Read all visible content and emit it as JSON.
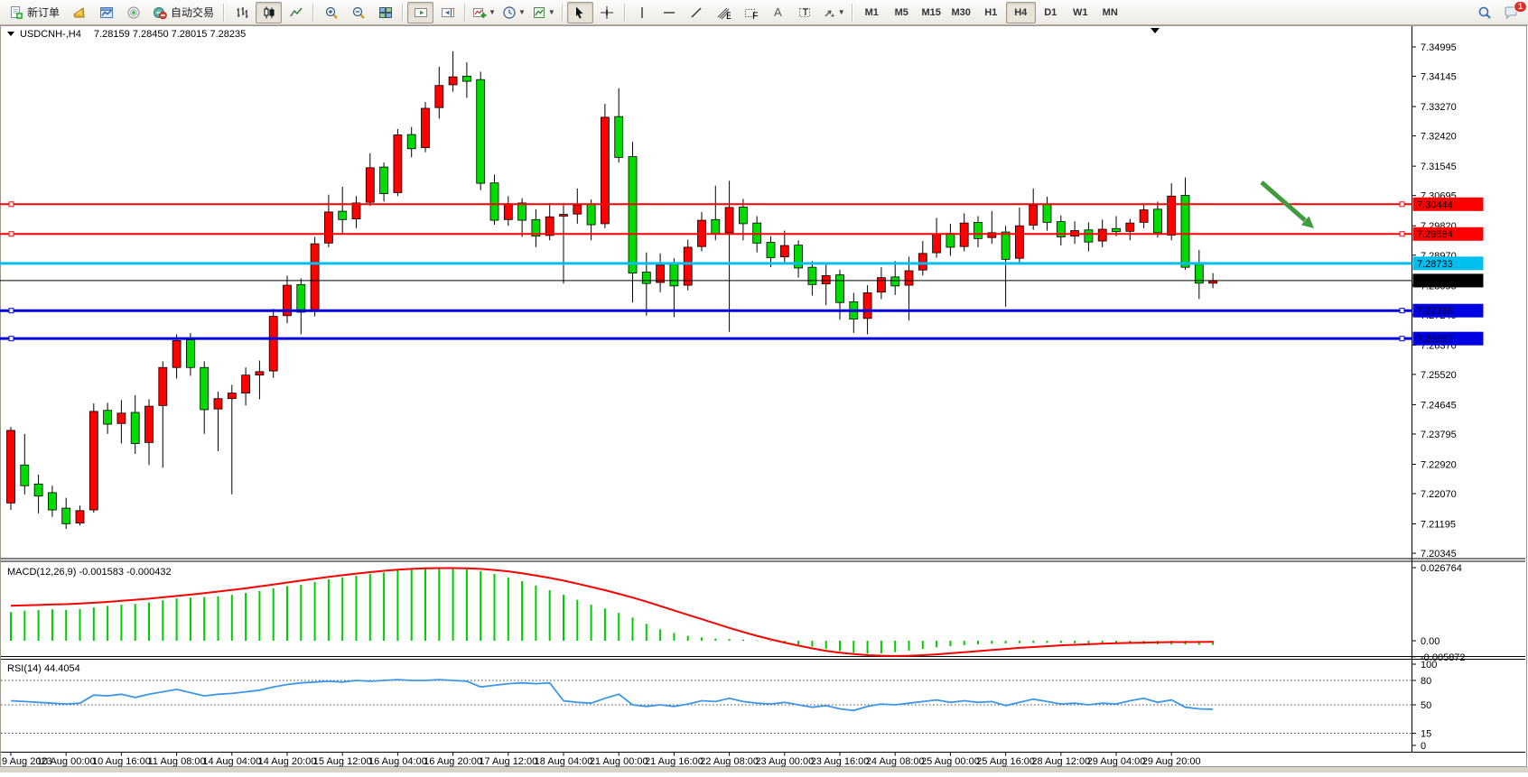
{
  "toolbar": {
    "new_order_label": "新订单",
    "autotrading_label": "自动交易",
    "text_tool": "A",
    "label_tool": "T",
    "timeframes": [
      "M1",
      "M5",
      "M15",
      "M30",
      "H1",
      "H4",
      "D1",
      "W1",
      "MN"
    ],
    "active_timeframe": "H4",
    "notification_count": "1"
  },
  "chart": {
    "title": "USDCNH-,H4",
    "ohlc_line": "7.28159 7.28450 7.28015 7.28235"
  },
  "chart_data": {
    "type": "candlestick",
    "symbol": "USDCNH-",
    "timeframe": "H4",
    "last_open": "7.28159",
    "last_high": "7.28450",
    "last_low": "7.28015",
    "last_close": "7.28235",
    "colors": {
      "bull": "#FF0000",
      "bear": "#00DC00",
      "wick": "#000000",
      "macd_hist": "#00CC00",
      "macd_signal": "#FF0000",
      "rsi": "#3E96E8",
      "arrow": "#3E9B3E"
    },
    "y_axis_ticks": [
      "7.34995",
      "7.34145",
      "7.33270",
      "7.32420",
      "7.31545",
      "7.30695",
      "7.29820",
      "7.28970",
      "7.28095",
      "7.27245",
      "7.26370",
      "7.25520",
      "7.24645",
      "7.23795",
      "7.22920",
      "7.22070",
      "7.21195",
      "7.20345"
    ],
    "x_axis_labels": [
      "9 Aug 2023",
      "10 Aug 00:00",
      "10 Aug 16:00",
      "11 Aug 08:00",
      "14 Aug 04:00",
      "14 Aug 20:00",
      "15 Aug 12:00",
      "16 Aug 04:00",
      "16 Aug 20:00",
      "17 Aug 12:00",
      "18 Aug 04:00",
      "21 Aug 00:00",
      "21 Aug 16:00",
      "22 Aug 08:00",
      "23 Aug 00:00",
      "23 Aug 16:00",
      "24 Aug 08:00",
      "25 Aug 00:00",
      "25 Aug 16:00",
      "28 Aug 12:00",
      "29 Aug 04:00",
      "29 Aug 20:00"
    ],
    "horizontal_lines": [
      {
        "price": 7.30444,
        "label": "7.30444",
        "color": "#FF0000",
        "width": 2,
        "handles": true
      },
      {
        "price": 7.29584,
        "label": "7.29584",
        "color": "#FF0000",
        "width": 2,
        "handles": true
      },
      {
        "price": 7.28733,
        "label": "7.28733",
        "color": "#00BFEF",
        "width": 3,
        "handles": false
      },
      {
        "price": 7.28235,
        "label": "7.28235",
        "color": "#000000",
        "width": 1,
        "handles": false,
        "role": "current-price"
      },
      {
        "price": 7.27366,
        "label": "7.27366",
        "color": "#0000E0",
        "width": 3,
        "handles": true
      },
      {
        "price": 7.26557,
        "label": "7.26557",
        "color": "#0000E0",
        "width": 3,
        "handles": true
      }
    ],
    "candles_ohlc": [
      [
        7.218,
        7.24,
        7.216,
        7.239
      ],
      [
        7.229,
        7.238,
        7.2205,
        7.223
      ],
      [
        7.2235,
        7.2262,
        7.215,
        7.22
      ],
      [
        7.221,
        7.223,
        7.214,
        7.216
      ],
      [
        7.2165,
        7.2195,
        7.2105,
        7.212
      ],
      [
        7.2122,
        7.2172,
        7.2115,
        7.2158
      ],
      [
        7.216,
        7.2468,
        7.2152,
        7.2445
      ],
      [
        7.2448,
        7.247,
        7.238,
        7.2408
      ],
      [
        7.241,
        7.2478,
        7.2352,
        7.244
      ],
      [
        7.2442,
        7.2492,
        7.2322,
        7.2352
      ],
      [
        7.2355,
        7.248,
        7.229,
        7.246
      ],
      [
        7.2462,
        7.259,
        7.2282,
        7.2572
      ],
      [
        7.2572,
        7.2668,
        7.254,
        7.265
      ],
      [
        7.2652,
        7.2672,
        7.2548,
        7.2572
      ],
      [
        7.2572,
        7.259,
        7.238,
        7.245
      ],
      [
        7.2452,
        7.2502,
        7.233,
        7.2482
      ],
      [
        7.2482,
        7.2522,
        7.2205,
        7.2498
      ],
      [
        7.2498,
        7.2572,
        7.2462,
        7.255
      ],
      [
        7.255,
        7.2592,
        7.248,
        7.256
      ],
      [
        7.2562,
        7.2742,
        7.2542,
        7.272
      ],
      [
        7.2722,
        7.2838,
        7.27,
        7.281
      ],
      [
        7.2812,
        7.283,
        7.2668,
        7.2732
      ],
      [
        7.2734,
        7.295,
        7.272,
        7.293
      ],
      [
        7.2932,
        7.3072,
        7.292,
        7.3022
      ],
      [
        7.3024,
        7.3095,
        7.296,
        7.3
      ],
      [
        7.3002,
        7.3068,
        7.2975,
        7.3048
      ],
      [
        7.305,
        7.3192,
        7.304,
        7.315
      ],
      [
        7.3152,
        7.3165,
        7.3052,
        7.3075
      ],
      [
        7.3078,
        7.3262,
        7.3068,
        7.3245
      ],
      [
        7.3246,
        7.3268,
        7.318,
        7.3205
      ],
      [
        7.3208,
        7.334,
        7.3195,
        7.3322
      ],
      [
        7.3324,
        7.3442,
        7.3292,
        7.3388
      ],
      [
        7.339,
        7.3487,
        7.337,
        7.3413
      ],
      [
        7.3415,
        7.3455,
        7.3352,
        7.34
      ],
      [
        7.3405,
        7.3428,
        7.3085,
        7.3105
      ],
      [
        7.3106,
        7.313,
        7.2985,
        7.2998
      ],
      [
        7.3,
        7.3068,
        7.2982,
        7.3046
      ],
      [
        7.3048,
        7.3062,
        7.295,
        7.2998
      ],
      [
        7.3,
        7.303,
        7.292,
        7.2952
      ],
      [
        7.2954,
        7.3048,
        7.294,
        7.3008
      ],
      [
        7.301,
        7.3048,
        7.2815,
        7.3015
      ],
      [
        7.3016,
        7.309,
        7.2988,
        7.3042
      ],
      [
        7.3044,
        7.3058,
        7.294,
        7.2985
      ],
      [
        7.2988,
        7.3335,
        7.2975,
        7.3296
      ],
      [
        7.3298,
        7.338,
        7.3165,
        7.318
      ],
      [
        7.3182,
        7.3225,
        7.276,
        7.2845
      ],
      [
        7.2848,
        7.2905,
        7.2722,
        7.2815
      ],
      [
        7.2818,
        7.2902,
        7.279,
        7.2868
      ],
      [
        7.287,
        7.2888,
        7.2718,
        7.2808
      ],
      [
        7.281,
        7.2942,
        7.2795,
        7.292
      ],
      [
        7.2922,
        7.3022,
        7.2908,
        7.2998
      ],
      [
        7.3,
        7.3098,
        7.294,
        7.296
      ],
      [
        7.2962,
        7.3112,
        7.2675,
        7.3035
      ],
      [
        7.3036,
        7.306,
        7.294,
        7.2988
      ],
      [
        7.299,
        7.301,
        7.2905,
        7.2932
      ],
      [
        7.2934,
        7.2952,
        7.2862,
        7.289
      ],
      [
        7.2892,
        7.2968,
        7.2875,
        7.2925
      ],
      [
        7.2926,
        7.294,
        7.2832,
        7.286
      ],
      [
        7.2862,
        7.288,
        7.278,
        7.2812
      ],
      [
        7.2814,
        7.287,
        7.2752,
        7.2838
      ],
      [
        7.284,
        7.2855,
        7.271,
        7.276
      ],
      [
        7.2762,
        7.2788,
        7.2672,
        7.2712
      ],
      [
        7.2714,
        7.281,
        7.2668,
        7.2788
      ],
      [
        7.279,
        7.2862,
        7.277,
        7.2832
      ],
      [
        7.2834,
        7.288,
        7.2782,
        7.2808
      ],
      [
        7.281,
        7.2892,
        7.2708,
        7.2852
      ],
      [
        7.2854,
        7.2938,
        7.2838,
        7.2902
      ],
      [
        7.2904,
        7.3005,
        7.289,
        7.2958
      ],
      [
        7.296,
        7.2988,
        7.2895,
        7.292
      ],
      [
        7.2922,
        7.3018,
        7.2908,
        7.299
      ],
      [
        7.2992,
        7.301,
        7.292,
        7.2945
      ],
      [
        7.2948,
        7.3025,
        7.293,
        7.2962
      ],
      [
        7.2964,
        7.2982,
        7.2748,
        7.2885
      ],
      [
        7.2888,
        7.3035,
        7.287,
        7.2982
      ],
      [
        7.2984,
        7.309,
        7.297,
        7.3042
      ],
      [
        7.3044,
        7.3066,
        7.2968,
        7.2992
      ],
      [
        7.2994,
        7.3012,
        7.2925,
        7.295
      ],
      [
        7.2952,
        7.2995,
        7.293,
        7.2968
      ],
      [
        7.297,
        7.2992,
        7.2908,
        7.2935
      ],
      [
        7.2938,
        7.3,
        7.292,
        7.2972
      ],
      [
        7.2974,
        7.301,
        7.2952,
        7.2965
      ],
      [
        7.2966,
        7.3002,
        7.294,
        7.299
      ],
      [
        7.2992,
        7.3045,
        7.2975,
        7.3028
      ],
      [
        7.303,
        7.3052,
        7.2948,
        7.2962
      ],
      [
        7.2955,
        7.3105,
        7.294,
        7.3068
      ],
      [
        7.307,
        7.3122,
        7.2855,
        7.2862
      ],
      [
        7.287,
        7.2912,
        7.277,
        7.2816
      ],
      [
        7.28159,
        7.2845,
        7.28015,
        7.28235
      ]
    ],
    "macd": {
      "label": "MACD(12,26,9) -0.001583 -0.000432",
      "main_value": "-0.001583",
      "signal_value": "-0.000432",
      "axis_labels": [
        {
          "value": 0.026764,
          "label": "0.026764"
        },
        {
          "value": 0,
          "label": "0.00"
        },
        {
          "value": -0.005872,
          "label": "-0.005872"
        }
      ],
      "histogram": [
        0.0105,
        0.011,
        0.0112,
        0.0115,
        0.0113,
        0.0116,
        0.0122,
        0.0128,
        0.0132,
        0.0135,
        0.014,
        0.0148,
        0.0155,
        0.0158,
        0.016,
        0.0163,
        0.0168,
        0.0175,
        0.0182,
        0.0192,
        0.02,
        0.0205,
        0.0215,
        0.0225,
        0.0232,
        0.0238,
        0.0245,
        0.025,
        0.0258,
        0.0262,
        0.0265,
        0.0267,
        0.0266,
        0.0262,
        0.0255,
        0.0245,
        0.0232,
        0.0218,
        0.0202,
        0.0185,
        0.0168,
        0.015,
        0.0132,
        0.0118,
        0.0102,
        0.0085,
        0.0062,
        0.0042,
        0.0028,
        0.0018,
        0.0012,
        0.0008,
        0.0006,
        0.0004,
        0.0002,
        -0.0002,
        -0.0008,
        -0.0014,
        -0.0022,
        -0.003,
        -0.0038,
        -0.0044,
        -0.0048,
        -0.0046,
        -0.0042,
        -0.0036,
        -0.003,
        -0.0024,
        -0.002,
        -0.0016,
        -0.0013,
        -0.0011,
        -0.001,
        -0.0009,
        -0.0008,
        -0.0008,
        -0.0008,
        -0.0009,
        -0.001,
        -0.001,
        -0.0011,
        -0.0012,
        -0.0012,
        -0.0013,
        -0.0014,
        -0.0014,
        -0.0015,
        -0.00158
      ],
      "signal": [
        0.0128,
        0.013,
        0.0131,
        0.0133,
        0.0134,
        0.0136,
        0.0139,
        0.0142,
        0.0146,
        0.015,
        0.0154,
        0.0159,
        0.0164,
        0.0169,
        0.0174,
        0.018,
        0.0186,
        0.0192,
        0.0199,
        0.0206,
        0.0213,
        0.022,
        0.0227,
        0.0234,
        0.024,
        0.0246,
        0.0251,
        0.0256,
        0.026,
        0.0263,
        0.0265,
        0.0266,
        0.0266,
        0.0265,
        0.0263,
        0.0259,
        0.0254,
        0.0247,
        0.0239,
        0.023,
        0.022,
        0.0209,
        0.0197,
        0.0185,
        0.0172,
        0.0158,
        0.0143,
        0.0127,
        0.0111,
        0.0095,
        0.0079,
        0.0063,
        0.0047,
        0.0032,
        0.0018,
        0.0005,
        -0.0007,
        -0.0018,
        -0.0028,
        -0.0037,
        -0.0044,
        -0.0049,
        -0.0053,
        -0.0055,
        -0.0056,
        -0.0055,
        -0.0053,
        -0.005,
        -0.0046,
        -0.0042,
        -0.0038,
        -0.0034,
        -0.003,
        -0.0026,
        -0.0023,
        -0.002,
        -0.0017,
        -0.0015,
        -0.0013,
        -0.0011,
        -0.0009,
        -0.0008,
        -0.0007,
        -0.0006,
        -0.0005,
        -0.0005,
        -0.00045,
        -0.000432
      ]
    },
    "rsi": {
      "label": "RSI(14) 44.4054",
      "current_value": "44.4054",
      "levels": [
        {
          "label": "100",
          "value": 100,
          "dashed": false
        },
        {
          "label": "80",
          "value": 80,
          "dashed": true
        },
        {
          "label": "50",
          "value": 50,
          "dashed": true
        },
        {
          "label": "15",
          "value": 15,
          "dashed": true
        },
        {
          "label": "0",
          "value": 0,
          "dashed": false
        }
      ],
      "values": [
        55,
        54,
        53,
        52,
        51,
        52,
        62,
        61,
        63,
        59,
        63,
        66,
        69,
        65,
        61,
        63,
        64,
        66,
        68,
        72,
        75,
        77,
        78,
        79,
        78,
        80,
        79,
        80,
        81,
        80,
        80,
        81,
        80,
        79,
        72,
        74,
        76,
        77,
        76,
        77,
        55,
        53,
        52,
        58,
        63,
        50,
        48,
        50,
        48,
        51,
        55,
        54,
        58,
        54,
        52,
        51,
        53,
        50,
        47,
        49,
        45,
        43,
        48,
        51,
        50,
        52,
        54,
        56,
        53,
        55,
        53,
        54,
        49,
        53,
        57,
        54,
        51,
        52,
        50,
        52,
        51,
        55,
        58,
        53,
        56,
        47,
        45,
        44.41
      ]
    },
    "annotation_arrow": {
      "color": "#3E9B3E",
      "direction": "down-right"
    }
  }
}
